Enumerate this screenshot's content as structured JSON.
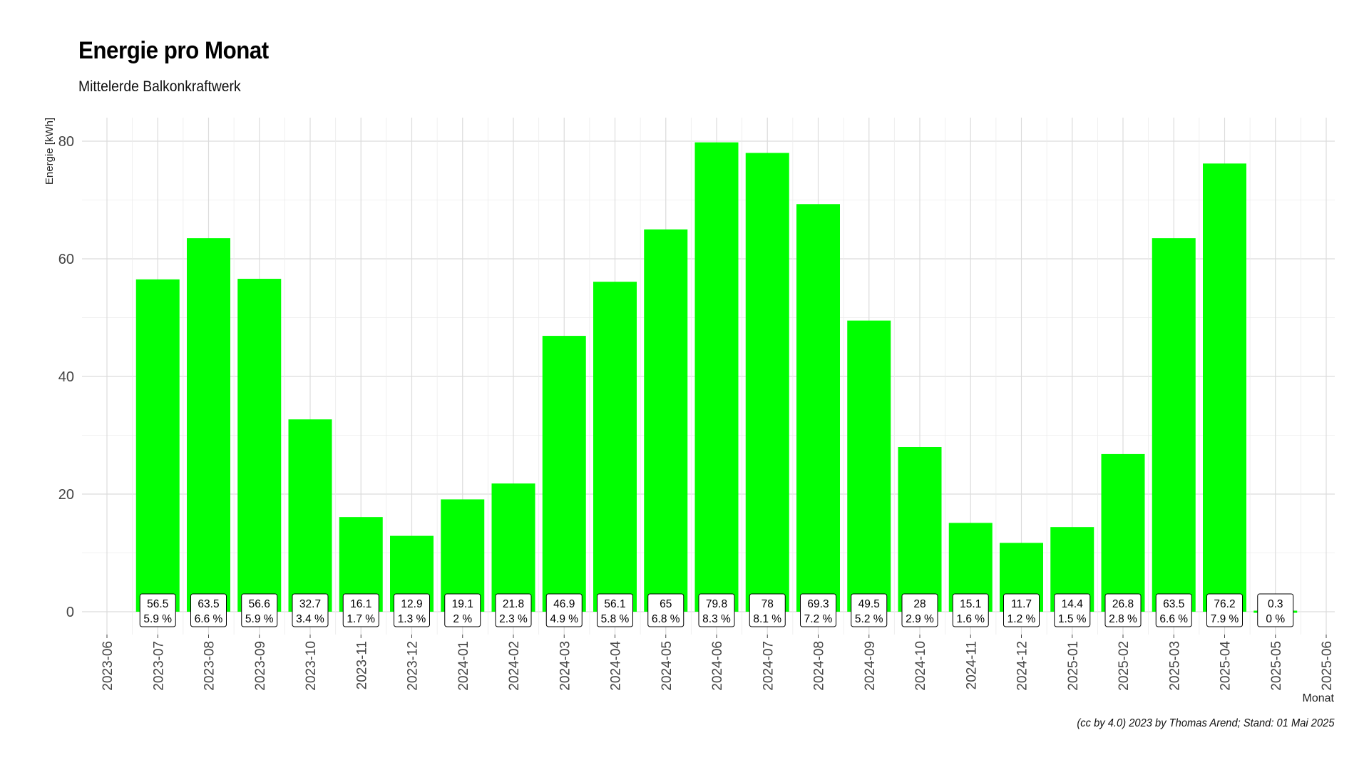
{
  "chart_data": {
    "type": "bar",
    "title": "Energie pro Monat",
    "subtitle": "Mittelerde Balkonkraftwerk",
    "xlabel": "Monat",
    "ylabel": "Energie [kWh]",
    "caption": "(cc by 4.0) 2023 by Thomas Arend; Stand: 01 Mai 2025",
    "ylim": [
      -4,
      84
    ],
    "yticks": [
      0,
      20,
      40,
      60,
      80
    ],
    "grid": true,
    "bar_color": "#00ff00",
    "x_ticks": [
      "2023-06",
      "2023-07",
      "2023-08",
      "2023-09",
      "2023-10",
      "2023-11",
      "2023-12",
      "2024-01",
      "2024-02",
      "2024-03",
      "2024-04",
      "2024-05",
      "2024-06",
      "2024-07",
      "2024-08",
      "2024-09",
      "2024-10",
      "2024-11",
      "2024-12",
      "2025-01",
      "2025-02",
      "2025-03",
      "2025-04",
      "2025-05",
      "2025-06"
    ],
    "bars": [
      {
        "month": "2023-07",
        "value": 56.5,
        "label": "56.5",
        "percent": "5.9 %"
      },
      {
        "month": "2023-08",
        "value": 63.5,
        "label": "63.5",
        "percent": "6.6 %"
      },
      {
        "month": "2023-09",
        "value": 56.6,
        "label": "56.6",
        "percent": "5.9 %"
      },
      {
        "month": "2023-10",
        "value": 32.7,
        "label": "32.7",
        "percent": "3.4 %"
      },
      {
        "month": "2023-11",
        "value": 16.1,
        "label": "16.1",
        "percent": "1.7 %"
      },
      {
        "month": "2023-12",
        "value": 12.9,
        "label": "12.9",
        "percent": "1.3 %"
      },
      {
        "month": "2024-01",
        "value": 19.1,
        "label": "19.1",
        "percent": "2 %"
      },
      {
        "month": "2024-02",
        "value": 21.8,
        "label": "21.8",
        "percent": "2.3 %"
      },
      {
        "month": "2024-03",
        "value": 46.9,
        "label": "46.9",
        "percent": "4.9 %"
      },
      {
        "month": "2024-04",
        "value": 56.1,
        "label": "56.1",
        "percent": "5.8 %"
      },
      {
        "month": "2024-05",
        "value": 65,
        "label": "65",
        "percent": "6.8 %"
      },
      {
        "month": "2024-06",
        "value": 79.8,
        "label": "79.8",
        "percent": "8.3 %"
      },
      {
        "month": "2024-07",
        "value": 78,
        "label": "78",
        "percent": "8.1 %"
      },
      {
        "month": "2024-08",
        "value": 69.3,
        "label": "69.3",
        "percent": "7.2 %"
      },
      {
        "month": "2024-09",
        "value": 49.5,
        "label": "49.5",
        "percent": "5.2 %"
      },
      {
        "month": "2024-10",
        "value": 28,
        "label": "28",
        "percent": "2.9 %"
      },
      {
        "month": "2024-11",
        "value": 15.1,
        "label": "15.1",
        "percent": "1.6 %"
      },
      {
        "month": "2024-12",
        "value": 11.7,
        "label": "11.7",
        "percent": "1.2 %"
      },
      {
        "month": "2025-01",
        "value": 14.4,
        "label": "14.4",
        "percent": "1.5 %"
      },
      {
        "month": "2025-02",
        "value": 26.8,
        "label": "26.8",
        "percent": "2.8 %"
      },
      {
        "month": "2025-03",
        "value": 63.5,
        "label": "63.5",
        "percent": "6.6 %"
      },
      {
        "month": "2025-04",
        "value": 76.2,
        "label": "76.2",
        "percent": "7.9 %"
      },
      {
        "month": "2025-05",
        "value": 0.3,
        "label": "0.3",
        "percent": "0 %"
      }
    ]
  }
}
